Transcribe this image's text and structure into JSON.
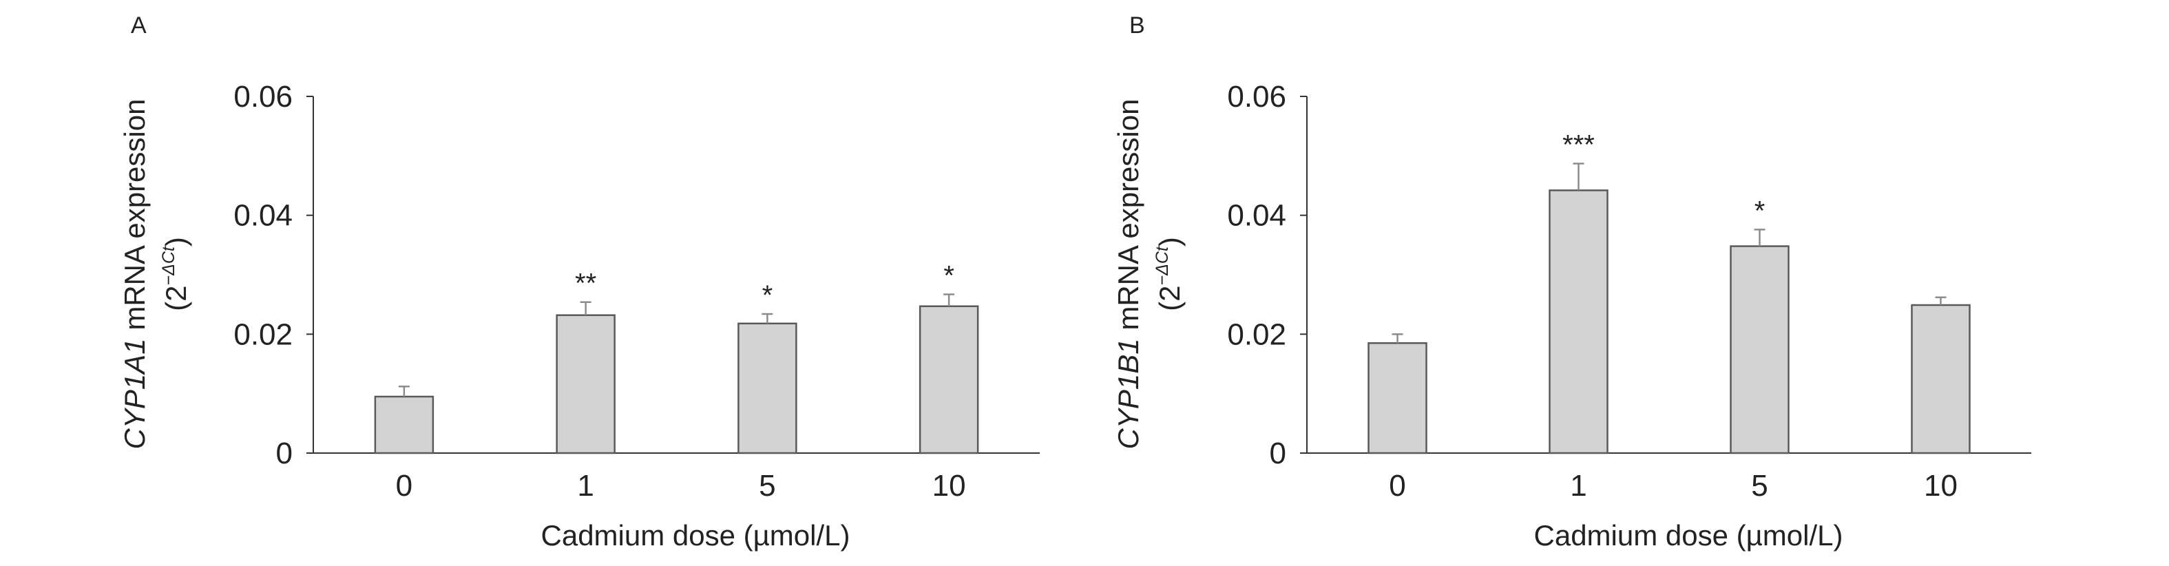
{
  "chart_data": [
    {
      "type": "bar",
      "panel": "A",
      "categories": [
        "0",
        "1",
        "5",
        "10"
      ],
      "values": [
        0.0095,
        0.0232,
        0.0218,
        0.0247
      ],
      "errors": [
        0.0017,
        0.0022,
        0.0016,
        0.002
      ],
      "significance": [
        "",
        "**",
        "*",
        "*"
      ],
      "xlabel": "Cadmium dose (µmol/L)",
      "ylabel_gene": "CYP1A1",
      "ylabel_rest": " mRNA expression",
      "ylabel_unit_open": "(2",
      "ylabel_unit_exp": "−ΔCt",
      "ylabel_unit_close": ")",
      "ylim": [
        0,
        0.06
      ],
      "yticks": [
        0,
        0.02,
        0.04,
        0.06
      ],
      "ytick_labels": [
        "0",
        "0.02",
        "0.04",
        "0.06"
      ],
      "grid": false,
      "bar_color": "#d3d3d3",
      "bar_edge_color": "#595959"
    },
    {
      "type": "bar",
      "panel": "B",
      "categories": [
        "0",
        "1",
        "5",
        "10"
      ],
      "values": [
        0.0185,
        0.0442,
        0.0348,
        0.0249
      ],
      "errors": [
        0.0015,
        0.0045,
        0.0028,
        0.0013
      ],
      "significance": [
        "",
        "***",
        "*",
        ""
      ],
      "xlabel": "Cadmium dose (µmol/L)",
      "ylabel_gene": "CYP1B1",
      "ylabel_rest": " mRNA expression",
      "ylabel_unit_open": "(2",
      "ylabel_unit_exp": "−ΔCt",
      "ylabel_unit_close": ")",
      "ylim": [
        0,
        0.06
      ],
      "yticks": [
        0,
        0.02,
        0.04,
        0.06
      ],
      "ytick_labels": [
        "0",
        "0.02",
        "0.04",
        "0.06"
      ],
      "grid": false,
      "bar_color": "#d3d3d3",
      "bar_edge_color": "#595959"
    }
  ]
}
